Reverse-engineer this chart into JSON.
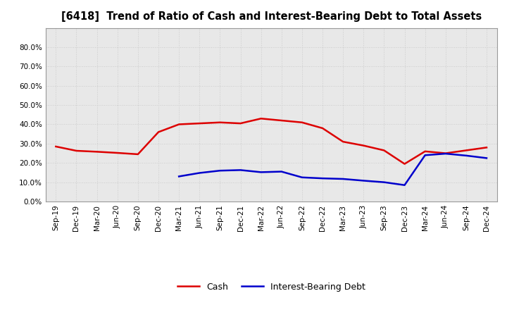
{
  "title": "[6418]  Trend of Ratio of Cash and Interest-Bearing Debt to Total Assets",
  "x_labels": [
    "Sep-19",
    "Dec-19",
    "Mar-20",
    "Jun-20",
    "Sep-20",
    "Dec-20",
    "Mar-21",
    "Jun-21",
    "Sep-21",
    "Dec-21",
    "Mar-22",
    "Jun-22",
    "Sep-22",
    "Dec-22",
    "Mar-23",
    "Jun-23",
    "Sep-23",
    "Dec-23",
    "Mar-24",
    "Jun-24",
    "Sep-24",
    "Dec-24"
  ],
  "cash": [
    0.285,
    0.263,
    0.258,
    0.252,
    0.245,
    0.36,
    0.4,
    0.405,
    0.41,
    0.405,
    0.43,
    0.42,
    0.41,
    0.38,
    0.31,
    0.29,
    0.265,
    0.195,
    0.26,
    0.25,
    0.265,
    0.28
  ],
  "ibd": [
    null,
    null,
    null,
    null,
    null,
    null,
    0.13,
    0.148,
    0.16,
    0.163,
    0.152,
    0.155,
    0.125,
    0.12,
    0.117,
    0.108,
    0.1,
    0.085,
    0.24,
    0.248,
    0.238,
    0.225
  ],
  "cash_color": "#dd0000",
  "ibd_color": "#0000cc",
  "bg_color": "#ffffff",
  "plot_bg_color": "#e8e8e8",
  "grid_color": "#cccccc",
  "ylim": [
    0.0,
    0.9
  ],
  "yticks": [
    0.0,
    0.1,
    0.2,
    0.3,
    0.4,
    0.5,
    0.6,
    0.7,
    0.8
  ],
  "legend_cash": "Cash",
  "legend_ibd": "Interest-Bearing Debt",
  "line_width": 1.8
}
